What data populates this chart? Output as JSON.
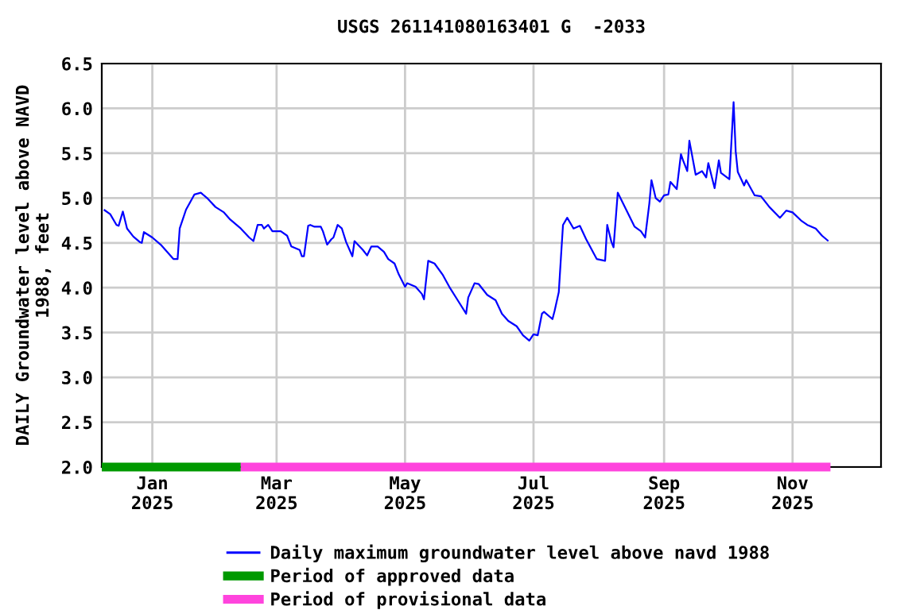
{
  "chart_data": {
    "type": "line",
    "title": "USGS 261141080163401 G  -2033",
    "ylabel": "DAILY Groundwater level above NAVD\n1988, feet",
    "x": [
      "2024-12-09",
      "2024-12-12",
      "2024-12-15",
      "2024-12-16",
      "2024-12-18",
      "2024-12-20",
      "2024-12-23",
      "2024-12-26",
      "2024-12-27",
      "2024-12-28",
      "2025-01-01",
      "2025-01-05",
      "2025-01-08",
      "2025-01-11",
      "2025-01-13",
      "2025-01-14",
      "2025-01-17",
      "2025-01-21",
      "2025-01-24",
      "2025-01-27",
      "2025-01-31",
      "2025-02-04",
      "2025-02-07",
      "2025-02-12",
      "2025-02-16",
      "2025-02-18",
      "2025-02-20",
      "2025-02-22",
      "2025-02-23",
      "2025-02-25",
      "2025-02-27",
      "2025-03-03",
      "2025-03-06",
      "2025-03-08",
      "2025-03-12",
      "2025-03-13",
      "2025-03-14",
      "2025-03-16",
      "2025-03-17",
      "2025-03-19",
      "2025-03-22",
      "2025-03-23",
      "2025-03-25",
      "2025-03-27",
      "2025-03-28",
      "2025-03-30",
      "2025-04-01",
      "2025-04-03",
      "2025-04-06",
      "2025-04-07",
      "2025-04-11",
      "2025-04-13",
      "2025-04-15",
      "2025-04-18",
      "2025-04-21",
      "2025-04-23",
      "2025-04-26",
      "2025-04-28",
      "2025-05-01",
      "2025-05-02",
      "2025-05-06",
      "2025-05-09",
      "2025-05-10",
      "2025-05-12",
      "2025-05-15",
      "2025-05-19",
      "2025-05-22",
      "2025-05-26",
      "2025-05-30",
      "2025-05-31",
      "2025-06-03",
      "2025-06-05",
      "2025-06-09",
      "2025-06-13",
      "2025-06-16",
      "2025-06-19",
      "2025-06-23",
      "2025-06-26",
      "2025-06-29",
      "2025-07-01",
      "2025-07-03",
      "2025-07-05",
      "2025-07-06",
      "2025-07-10",
      "2025-07-11",
      "2025-07-13",
      "2025-07-14",
      "2025-07-15",
      "2025-07-17",
      "2025-07-20",
      "2025-07-23",
      "2025-07-26",
      "2025-07-31",
      "2025-08-04",
      "2025-08-05",
      "2025-08-07",
      "2025-08-08",
      "2025-08-10",
      "2025-08-14",
      "2025-08-18",
      "2025-08-21",
      "2025-08-23",
      "2025-08-25",
      "2025-08-26",
      "2025-08-28",
      "2025-08-30",
      "2025-09-01",
      "2025-09-03",
      "2025-09-04",
      "2025-09-07",
      "2025-09-09",
      "2025-09-10",
      "2025-09-12",
      "2025-09-13",
      "2025-09-16",
      "2025-09-19",
      "2025-09-21",
      "2025-09-22",
      "2025-09-25",
      "2025-09-27",
      "2025-09-28",
      "2025-10-02",
      "2025-10-04",
      "2025-10-05",
      "2025-10-06",
      "2025-10-09",
      "2025-10-10",
      "2025-10-14",
      "2025-10-17",
      "2025-10-21",
      "2025-10-26",
      "2025-10-29",
      "2025-11-01",
      "2025-11-05",
      "2025-11-08",
      "2025-11-12",
      "2025-11-15",
      "2025-11-18"
    ],
    "series": [
      {
        "name": "Daily maximum groundwater level above navd 1988",
        "color": "#0000ff",
        "values": [
          4.87,
          4.82,
          4.7,
          4.69,
          4.85,
          4.66,
          4.57,
          4.51,
          4.5,
          4.62,
          4.56,
          4.48,
          4.4,
          4.32,
          4.32,
          4.66,
          4.87,
          5.04,
          5.06,
          5.0,
          4.9,
          4.84,
          4.76,
          4.66,
          4.56,
          4.52,
          4.7,
          4.7,
          4.66,
          4.7,
          4.63,
          4.63,
          4.58,
          4.46,
          4.42,
          4.35,
          4.35,
          4.69,
          4.7,
          4.68,
          4.68,
          4.63,
          4.48,
          4.54,
          4.56,
          4.7,
          4.66,
          4.51,
          4.35,
          4.52,
          4.42,
          4.36,
          4.46,
          4.46,
          4.4,
          4.32,
          4.27,
          4.15,
          4.01,
          4.05,
          4.01,
          3.93,
          3.87,
          4.3,
          4.27,
          4.14,
          4.01,
          3.86,
          3.71,
          3.89,
          4.05,
          4.04,
          3.92,
          3.86,
          3.71,
          3.63,
          3.57,
          3.47,
          3.41,
          3.48,
          3.47,
          3.71,
          3.73,
          3.65,
          3.74,
          3.95,
          4.33,
          4.7,
          4.78,
          4.66,
          4.69,
          4.54,
          4.32,
          4.3,
          4.7,
          4.51,
          4.45,
          5.06,
          4.87,
          4.68,
          4.63,
          4.56,
          4.94,
          5.2,
          5.0,
          4.96,
          5.03,
          5.04,
          5.18,
          5.1,
          5.49,
          5.42,
          5.3,
          5.64,
          5.26,
          5.3,
          5.23,
          5.39,
          5.11,
          5.42,
          5.28,
          5.21,
          6.07,
          5.52,
          5.29,
          5.14,
          5.2,
          5.03,
          5.02,
          4.9,
          4.78,
          4.86,
          4.84,
          4.75,
          4.7,
          4.66,
          4.58,
          4.52
        ]
      },
      {
        "name": "Period of approved data",
        "color": "#009900",
        "x": [
          "2024-12-08",
          "2025-02-12"
        ],
        "values": [
          2.0,
          2.0
        ]
      },
      {
        "name": "Period of provisional data",
        "color": "#ff44dd",
        "x": [
          "2025-02-12",
          "2025-11-19"
        ],
        "values": [
          2.0,
          2.0
        ]
      }
    ],
    "xlim": [
      "2024-12-08",
      "2025-12-13"
    ],
    "xticks": [
      {
        "value": "2025-01-01",
        "label": "Jan\n2025"
      },
      {
        "value": "2025-03-01",
        "label": "Mar\n2025"
      },
      {
        "value": "2025-05-01",
        "label": "May\n2025"
      },
      {
        "value": "2025-07-01",
        "label": "Jul\n2025"
      },
      {
        "value": "2025-09-01",
        "label": "Sep\n2025"
      },
      {
        "value": "2025-11-01",
        "label": "Nov\n2025"
      }
    ],
    "ylim": [
      2.0,
      6.5
    ],
    "yticks": [
      {
        "value": 2.0,
        "label": "2.0"
      },
      {
        "value": 2.5,
        "label": "2.5"
      },
      {
        "value": 3.0,
        "label": "3.0"
      },
      {
        "value": 3.5,
        "label": "3.5"
      },
      {
        "value": 4.0,
        "label": "4.0"
      },
      {
        "value": 4.5,
        "label": "4.5"
      },
      {
        "value": 5.0,
        "label": "5.0"
      },
      {
        "value": 5.5,
        "label": "5.5"
      },
      {
        "value": 6.0,
        "label": "6.0"
      },
      {
        "value": 6.5,
        "label": "6.5"
      }
    ],
    "grid": true,
    "legend": "bottom"
  }
}
